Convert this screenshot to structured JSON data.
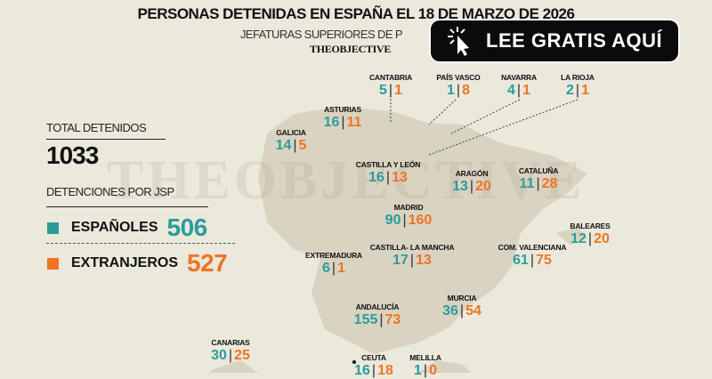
{
  "title": "PERSONAS DETENIDAS EN ESPAÑA EL 18 DE MARZO DE 2026",
  "subtitle": "JEFATURAS SUPERIORES DE P",
  "brand": "THEOBJECTIVE",
  "watermark": "THEOBJECTIVE",
  "cta": {
    "label": "LEE GRATIS AQUÍ",
    "icon": "cursor-click-icon"
  },
  "colors": {
    "espanoles": "#2a9d9a",
    "extranjeros": "#ee7422",
    "background": "#ebe8dc"
  },
  "summary": {
    "total_label": "TOTAL DETENIDOS",
    "total": "1033",
    "jsp_label": "DETENCIONES POR JSP",
    "espanoles_label": "ESPAÑOLES",
    "espanoles": "506",
    "extranjeros_label": "EXTRANJEROS",
    "extranjeros": "527"
  },
  "chart_data": {
    "type": "table",
    "title": "PERSONAS DETENIDAS EN ESPAÑA EL 18 DE MARZO DE 2026",
    "series": [
      "Españoles",
      "Extranjeros"
    ],
    "regions": [
      {
        "name": "CANTABRIA",
        "es": "5",
        "ex": "1"
      },
      {
        "name": "PAÍS VASCO",
        "es": "1",
        "ex": "8"
      },
      {
        "name": "NAVARRA",
        "es": "4",
        "ex": "1"
      },
      {
        "name": "LA RIOJA",
        "es": "2",
        "ex": "1"
      },
      {
        "name": "ASTURIAS",
        "es": "16",
        "ex": "11"
      },
      {
        "name": "GALICIA",
        "es": "14",
        "ex": "5"
      },
      {
        "name": "CASTILLA Y LEÓN",
        "es": "16",
        "ex": "13"
      },
      {
        "name": "ARAGÓN",
        "es": "13",
        "ex": "20"
      },
      {
        "name": "CATALUÑA",
        "es": "11",
        "ex": "28"
      },
      {
        "name": "MADRID",
        "es": "90",
        "ex": "160"
      },
      {
        "name": "BALEARES",
        "es": "12",
        "ex": "20"
      },
      {
        "name": "EXTREMADURA",
        "es": "6",
        "ex": "1"
      },
      {
        "name": "CASTILLA- LA MANCHA",
        "es": "17",
        "ex": "13"
      },
      {
        "name": "COM. VALENCIANA",
        "es": "61",
        "ex": "75"
      },
      {
        "name": "MURCIA",
        "es": "36",
        "ex": "54"
      },
      {
        "name": "ANDALUCÍA",
        "es": "155",
        "ex": "73"
      },
      {
        "name": "CANARIAS",
        "es": "30",
        "ex": "25"
      },
      {
        "name": "CEUTA",
        "es": "16",
        "ex": "18"
      },
      {
        "name": "MELILLA",
        "es": "1",
        "ex": "0"
      }
    ]
  }
}
